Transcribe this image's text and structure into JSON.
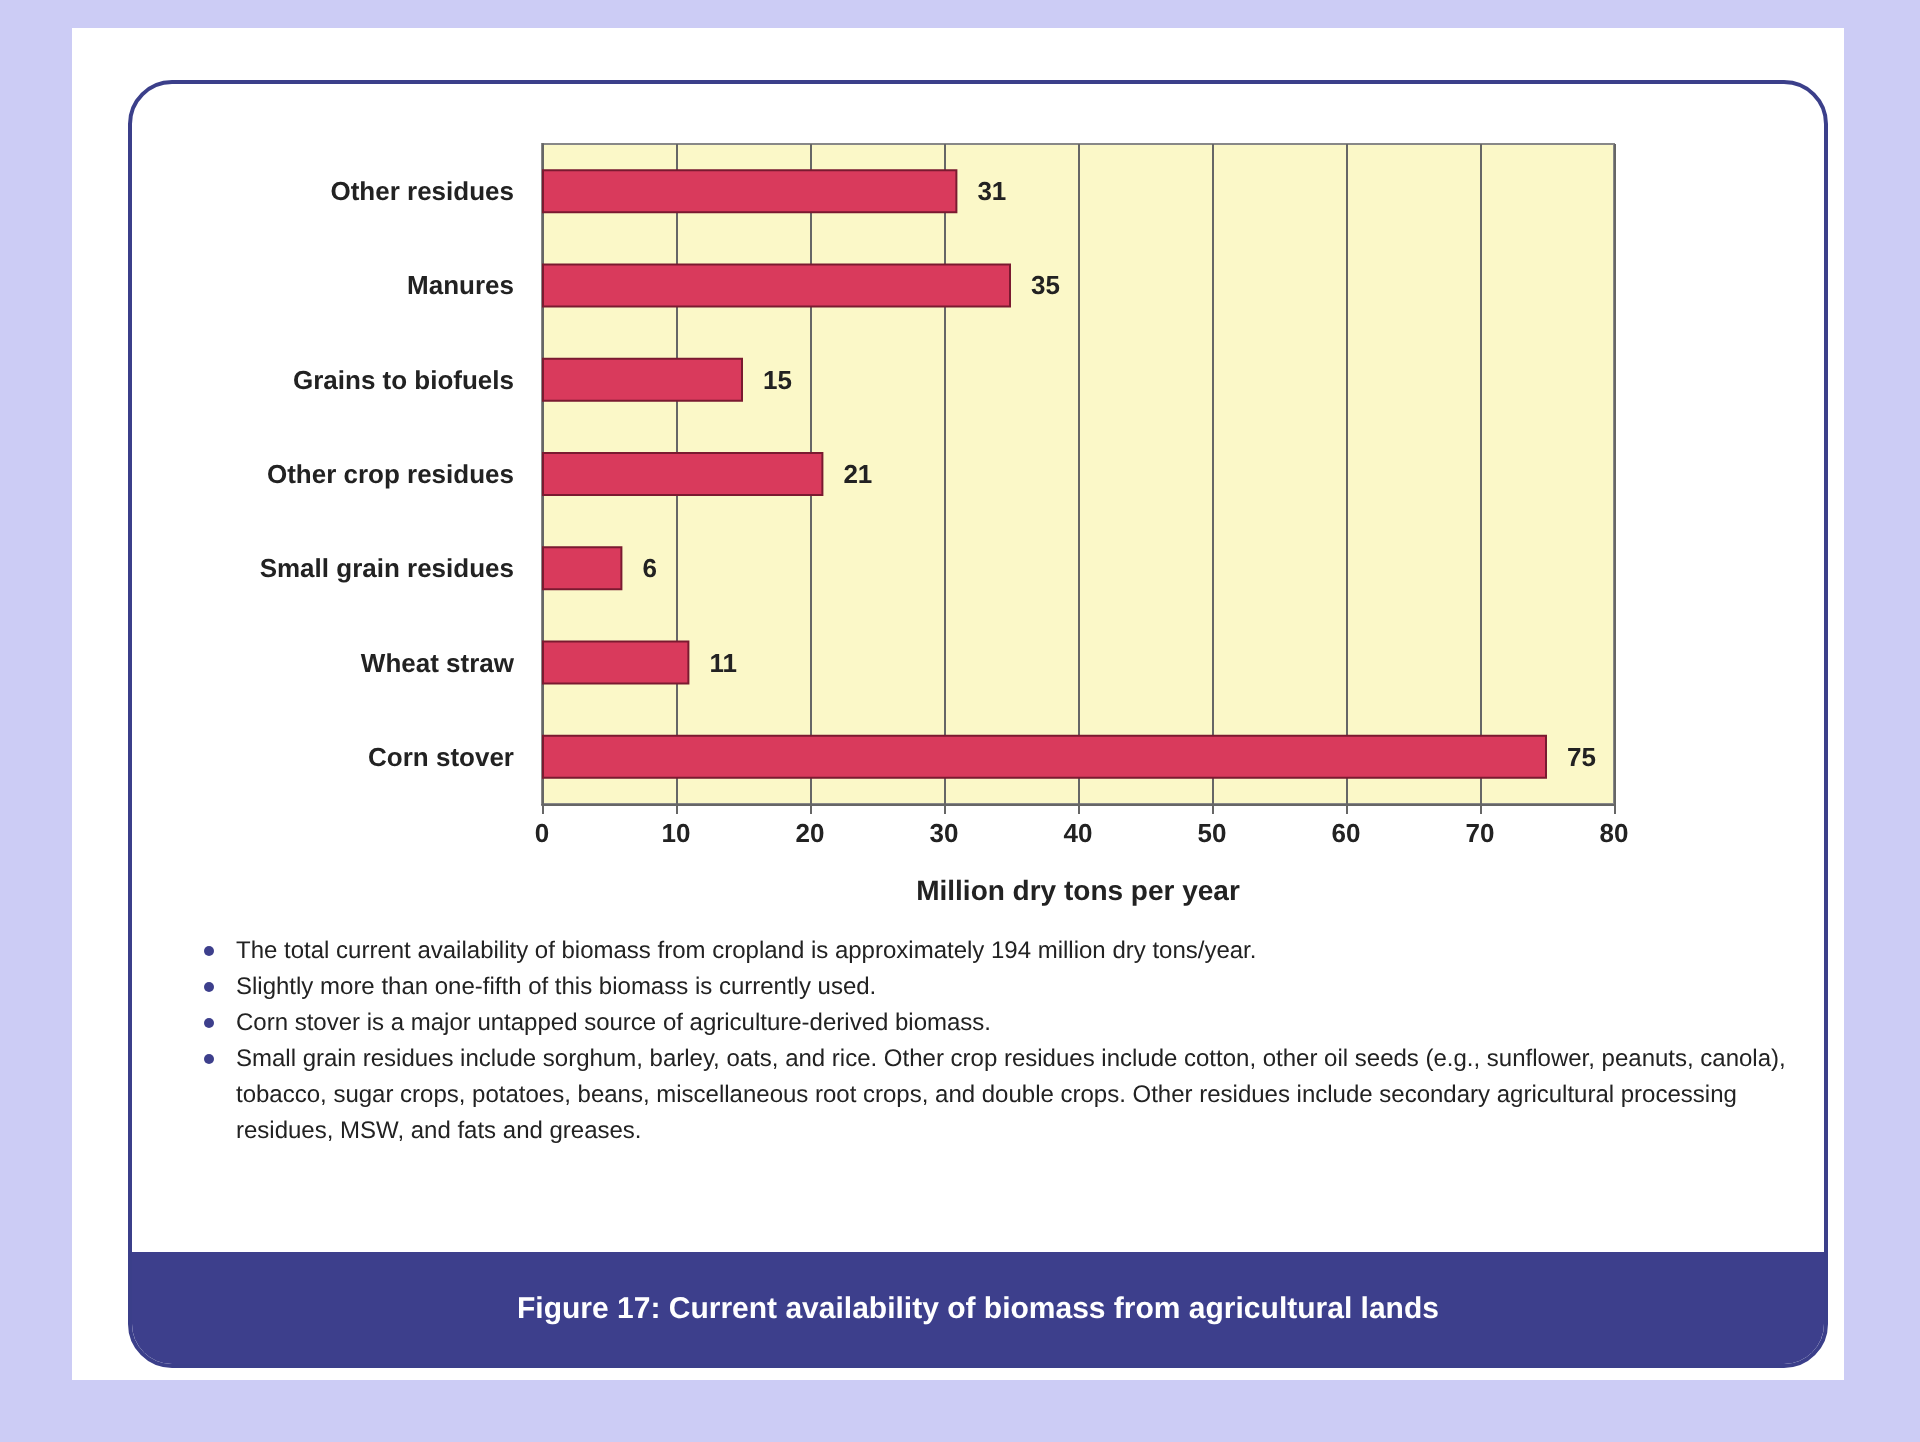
{
  "chart_data": {
    "type": "bar",
    "orientation": "horizontal",
    "title": "Figure 17: Current availability of biomass from agricultural lands",
    "xlabel": "Million dry tons per year",
    "categories": [
      "Other residues",
      "Manures",
      "Grains to biofuels",
      "Other crop residues",
      "Small grain residues",
      "Wheat straw",
      "Corn stover"
    ],
    "values": [
      31,
      35,
      15,
      21,
      6,
      11,
      75
    ],
    "color": "#d93a5c",
    "data_labels": true,
    "xlim": [
      0,
      80
    ],
    "xticks": [
      0,
      10,
      20,
      30,
      40,
      50,
      60,
      70,
      80
    ],
    "grid": "x",
    "annotations": [
      "The total current availability of biomass from cropland is approximately 194 million dry tons/year.",
      "Slightly more than one-fifth of this biomass is currently used.",
      "Corn stover is a major untapped source of agriculture-derived biomass.",
      "Small grain residues include sorghum, barley, oats, and rice. Other crop residues include cotton, other oil seeds (e.g., sunflower, peanuts, canola), tobacco, sugar crops, potatoes, beans, miscellaneous root crops, and double crops. Other residues include secondary agricultural processing residues, MSW, and fats and greases."
    ]
  }
}
